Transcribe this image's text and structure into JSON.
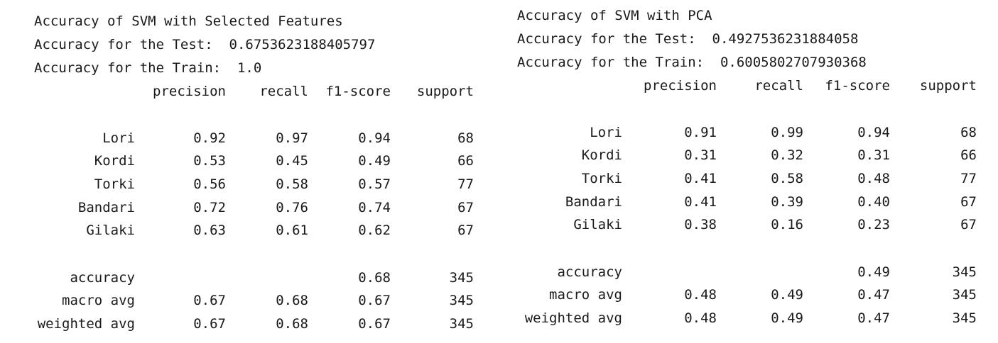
{
  "left": {
    "title": "Accuracy of SVM with Selected Features",
    "test_line": "Accuracy for the Test:  0.6753623188405797",
    "train_line": "Accuracy for the Train:  1.0",
    "headers": [
      "precision",
      "recall",
      "f1-score",
      "support"
    ],
    "rows": [
      {
        "label": "Lori",
        "precision": "0.92",
        "recall": "0.97",
        "f1": "0.94",
        "support": "68"
      },
      {
        "label": "Kordi",
        "precision": "0.53",
        "recall": "0.45",
        "f1": "0.49",
        "support": "66"
      },
      {
        "label": "Torki",
        "precision": "0.56",
        "recall": "0.58",
        "f1": "0.57",
        "support": "77"
      },
      {
        "label": "Bandari",
        "precision": "0.72",
        "recall": "0.76",
        "f1": "0.74",
        "support": "67"
      },
      {
        "label": "Gilaki",
        "precision": "0.63",
        "recall": "0.61",
        "f1": "0.62",
        "support": "67"
      }
    ],
    "summary": [
      {
        "label": "accuracy",
        "precision": "",
        "recall": "",
        "f1": "0.68",
        "support": "345"
      },
      {
        "label": "macro avg",
        "precision": "0.67",
        "recall": "0.68",
        "f1": "0.67",
        "support": "345"
      },
      {
        "label": "weighted avg",
        "precision": "0.67",
        "recall": "0.68",
        "f1": "0.67",
        "support": "345"
      }
    ]
  },
  "right": {
    "title": "Accuracy of SVM with PCA",
    "test_line": "Accuracy for the Test:  0.4927536231884058",
    "train_line": "Accuracy for the Train:  0.6005802707930368",
    "headers": [
      "precision",
      "recall",
      "f1-score",
      "support"
    ],
    "rows": [
      {
        "label": "Lori",
        "precision": "0.91",
        "recall": "0.99",
        "f1": "0.94",
        "support": "68"
      },
      {
        "label": "Kordi",
        "precision": "0.31",
        "recall": "0.32",
        "f1": "0.31",
        "support": "66"
      },
      {
        "label": "Torki",
        "precision": "0.41",
        "recall": "0.58",
        "f1": "0.48",
        "support": "77"
      },
      {
        "label": "Bandari",
        "precision": "0.41",
        "recall": "0.39",
        "f1": "0.40",
        "support": "67"
      },
      {
        "label": "Gilaki",
        "precision": "0.38",
        "recall": "0.16",
        "f1": "0.23",
        "support": "67"
      }
    ],
    "summary": [
      {
        "label": "accuracy",
        "precision": "",
        "recall": "",
        "f1": "0.49",
        "support": "345"
      },
      {
        "label": "macro avg",
        "precision": "0.48",
        "recall": "0.49",
        "f1": "0.47",
        "support": "345"
      },
      {
        "label": "weighted avg",
        "precision": "0.48",
        "recall": "0.49",
        "f1": "0.47",
        "support": "345"
      }
    ]
  }
}
